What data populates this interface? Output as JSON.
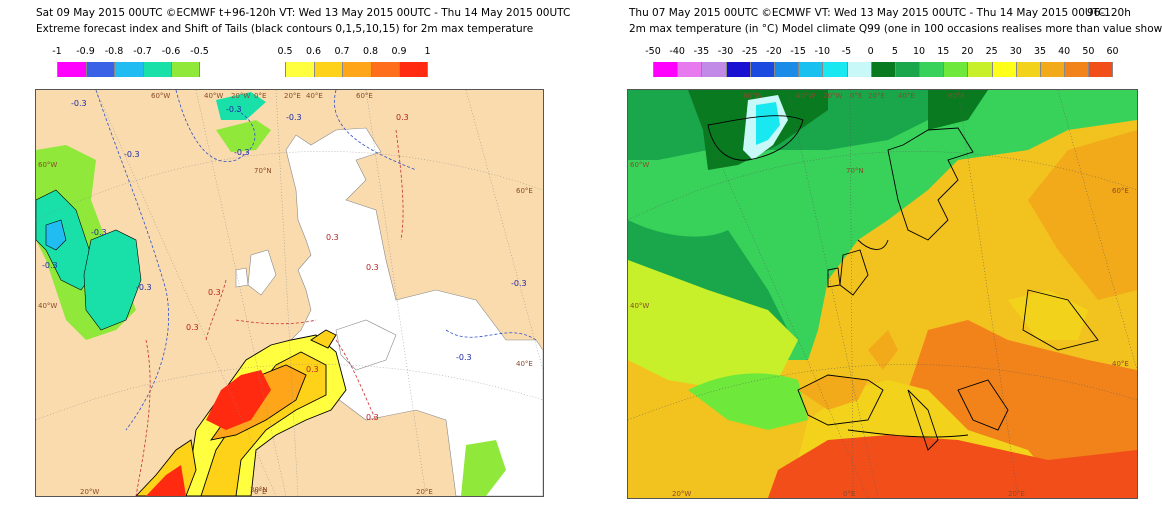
{
  "left": {
    "title_line1": "Sat 09 May 2015 00UTC ©ECMWF t+96-120h  VT: Wed 13 May 2015 00UTC - Thu 14 May 2015 00UTC",
    "title_line2": "Extreme forecast index and Shift of Tails (black contours 0,1,5,10,15) for 2m max temperature",
    "colorbar_negative": {
      "ticks": [
        "-1",
        "-0.9",
        "-0.8",
        "-0.7",
        "-0.6",
        "-0.5"
      ],
      "colors": [
        "#ff00ff",
        "#3a62e6",
        "#21bcf2",
        "#19e0a8",
        "#8fe83a"
      ]
    },
    "colorbar_positive": {
      "ticks": [
        "0.5",
        "0.6",
        "0.7",
        "0.8",
        "0.9",
        "1"
      ],
      "colors": [
        "#ffff40",
        "#ffd21a",
        "#ffa51a",
        "#ff6e1a",
        "#ff2a10"
      ]
    },
    "grid_labels": {
      "top": [
        "60°W",
        "40°W",
        "20°W",
        "0°E",
        "20°E",
        "40°E",
        "60°E"
      ],
      "left": [
        "60°W",
        "40°W"
      ],
      "right": [
        "60°E",
        "40°E"
      ],
      "bottom": [
        "20°W",
        "0°E",
        "20°E"
      ],
      "inner": [
        "70°N",
        "30°N"
      ]
    },
    "contour_labels": [
      "-0.3",
      "-0.3",
      "-0.3",
      "-0.3",
      "-0.3",
      "-0.3",
      "-0.3",
      "-0.3",
      "-0.3",
      "-0.3",
      "0.3",
      "0.3",
      "0.3",
      "0.3",
      "0.3",
      "0.3",
      "0.3"
    ]
  },
  "right": {
    "title_line1": "Thu 07 May 2015 00UTC ©ECMWF VT: Wed 13 May 2015 00UTC - Thu 14 May 2015 00UTC",
    "title_line1_right": "96-120h",
    "title_line2": "2m max temperature (in °C)  Model climate Q99 (one in 100 occasions realises more than value shown)",
    "colorbar": {
      "ticks": [
        "-50",
        "-40",
        "-35",
        "-30",
        "-25",
        "-20",
        "-15",
        "-10",
        "-5",
        "0",
        "5",
        "10",
        "15",
        "20",
        "25",
        "30",
        "35",
        "40",
        "50",
        "60"
      ],
      "colors": [
        "#ff00ff",
        "#e87af0",
        "#c08ae6",
        "#1a10d2",
        "#1a4ae0",
        "#1a8ce8",
        "#1ac0f0",
        "#1ae8f0",
        "#c8f8f8",
        "#0a7a20",
        "#1aa64a",
        "#38d25a",
        "#6ee83a",
        "#c8f02a",
        "#ffff1a",
        "#f2d21a",
        "#f2aa1a",
        "#f2821a",
        "#f24e1a"
      ]
    },
    "grid_labels": {
      "top": [
        "60°W",
        "40°W",
        "20°W",
        "0°E",
        "20°E",
        "40°E",
        "60°E"
      ],
      "left": [
        "60°W",
        "40°W"
      ],
      "right": [
        "60°E",
        "40°E"
      ],
      "bottom": [
        "20°W",
        "0°E",
        "20°E"
      ],
      "inner": [
        "70°N"
      ]
    }
  }
}
